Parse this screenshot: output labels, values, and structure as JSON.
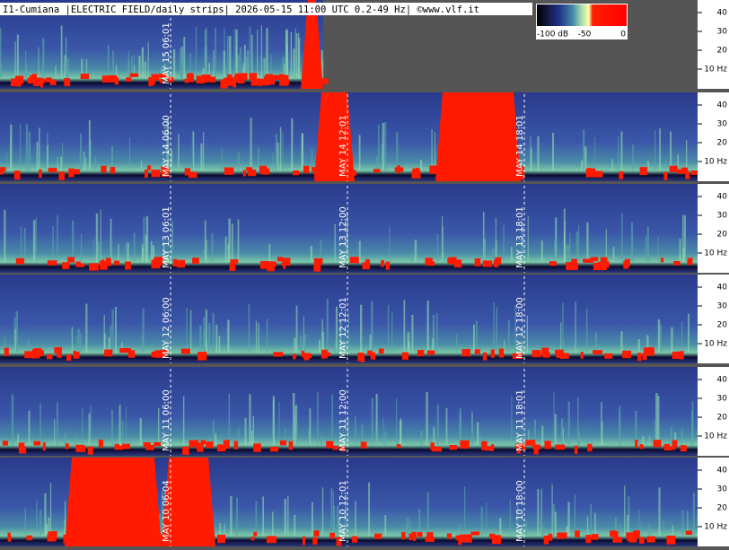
{
  "header": {
    "title": "I1-Cumiana |ELECTRIC FIELD/daily strips| 2026-05-15 11:00 UTC 0.2-49 Hz| ©www.vlf.it"
  },
  "colorbar": {
    "labels": [
      "-100 dB",
      "-50",
      "0"
    ]
  },
  "frequency_axis": {
    "labels": [
      "40",
      "30",
      "20",
      "10 Hz"
    ]
  },
  "strips": [
    {
      "time_labels": [
        "MAY 15  06:01"
      ]
    },
    {
      "time_labels": [
        "MAY 14  06:00",
        "MAY 14  12:01",
        "MAY 14  18:01"
      ]
    },
    {
      "time_labels": [
        "MAY 13  06:01",
        "MAY 13  12:00",
        "MAY 13  18:01"
      ]
    },
    {
      "time_labels": [
        "MAY 12  06:00",
        "MAY 12  12:01",
        "MAY 12  18:00"
      ]
    },
    {
      "time_labels": [
        "MAY 11  06:00",
        "MAY 11  12:00",
        "MAY 11  18:01"
      ]
    },
    {
      "time_labels": [
        "MAY 10  06:04",
        "MAY 10  12:01",
        "MAY 10  18:00"
      ]
    }
  ]
}
